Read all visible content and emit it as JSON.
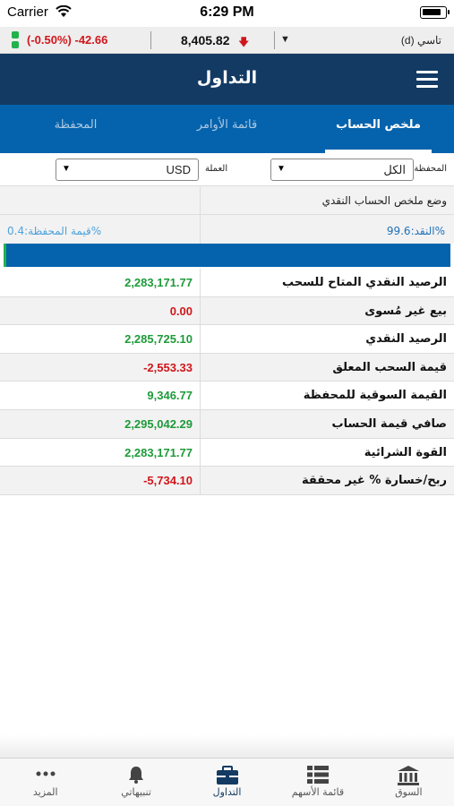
{
  "status_bar": {
    "carrier": "Carrier",
    "time": "6:29 PM"
  },
  "ticker": {
    "change_percent": "(-0.50%)",
    "change_value": "-42.66",
    "index_value": "8,405.82",
    "down_arrow": "🡇",
    "dropdown_glyph": "▼",
    "market_name": "تاسي (d)",
    "colors": {
      "negative": "#d0161b",
      "status_light": "#21b24b"
    }
  },
  "navbar": {
    "title": "التداول",
    "menu_icon": "hamburger-menu-icon"
  },
  "tabs": [
    {
      "label": "المحفظة",
      "active": false
    },
    {
      "label": "قائمة الأوامر",
      "active": false
    },
    {
      "label": "ملخص الحساب",
      "active": true
    }
  ],
  "filters": {
    "portfolio_label": "المحفظة",
    "portfolio_value": "الكل",
    "currency_label": "العملة",
    "currency_value": "USD",
    "arrow": "▼"
  },
  "cash_summary": {
    "title": "وضع ملخص الحساب النقدي",
    "cash_percent": "النقد:99.6%",
    "portfolio_percent": "قيمة المحفظة:0.4%",
    "cash_fraction": 0.996,
    "portfolio_fraction": 0.004
  },
  "rows": [
    {
      "label": "الرصيد النقدي المتاح للسحب",
      "value": "2,283,171.77",
      "sign": "pos"
    },
    {
      "label": "بيع غير مُسوى",
      "value": "0.00",
      "sign": "neg"
    },
    {
      "label": "الرصيد النقدي",
      "value": "2,285,725.10",
      "sign": "pos"
    },
    {
      "label": "قيمة السحب المعلق",
      "value": "-2,553.33",
      "sign": "neg"
    },
    {
      "label": "القيمة السوقية للمحفظة",
      "value": "9,346.77",
      "sign": "pos"
    },
    {
      "label": "صافي قيمة الحساب",
      "value": "2,295,042.29",
      "sign": "pos"
    },
    {
      "label": "القوة الشرائية",
      "value": "2,283,171.77",
      "sign": "pos"
    },
    {
      "label": "ربح/خسارة % غير محققة",
      "value": "-5,734.10",
      "sign": "neg"
    }
  ],
  "bottom_tabs": [
    {
      "label": "المزيد",
      "icon": "more-dots-icon"
    },
    {
      "label": "تنبيهاتي",
      "icon": "bell-icon"
    },
    {
      "label": "التداول",
      "icon": "briefcase-icon",
      "active": true
    },
    {
      "label": "قائمة الأسهم",
      "icon": "list-grid-icon"
    },
    {
      "label": "السوق",
      "icon": "bank-building-icon"
    }
  ]
}
